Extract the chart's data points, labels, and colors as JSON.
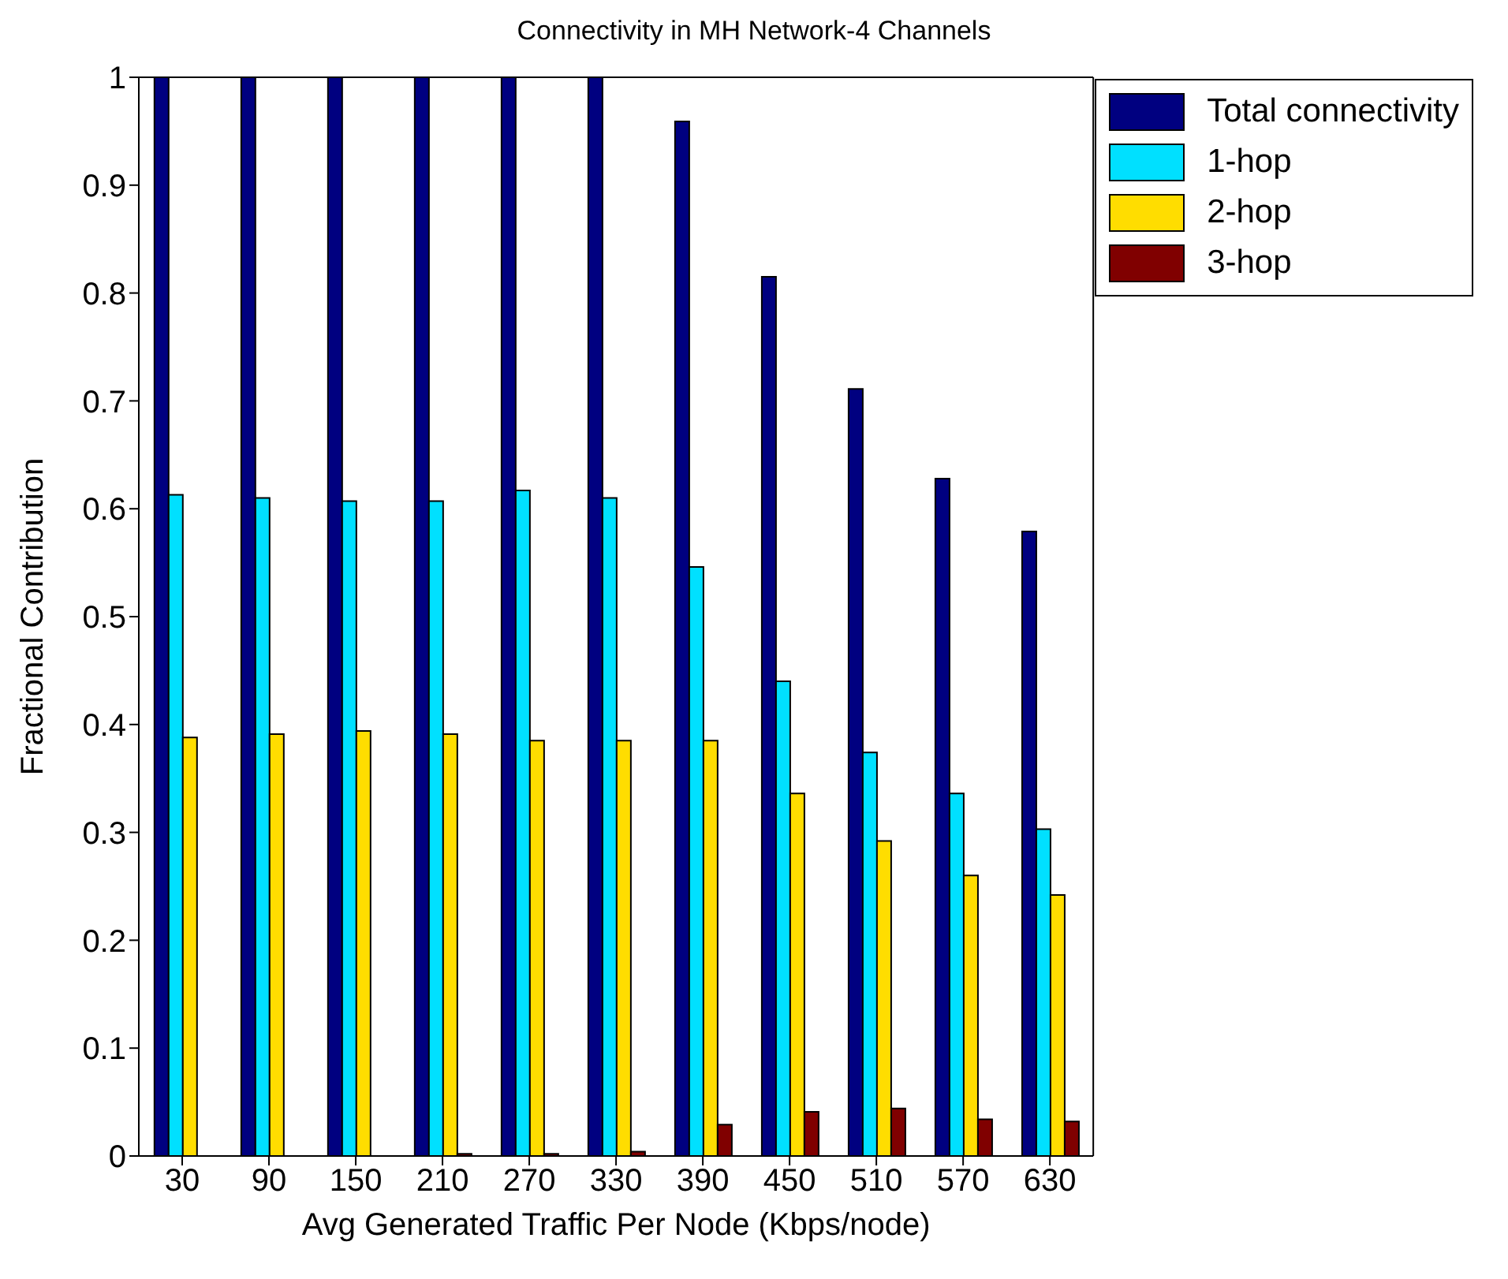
{
  "chart_data": {
    "type": "bar",
    "title": "Connectivity in MH Network-4 Channels",
    "xlabel": "Avg Generated Traffic Per Node (Kbps/node)",
    "ylabel": "Fractional Contribution",
    "categories": [
      "30",
      "90",
      "150",
      "210",
      "270",
      "330",
      "390",
      "450",
      "510",
      "570",
      "630"
    ],
    "series": [
      {
        "name": "Total connectivity",
        "color": "#000080",
        "values": [
          1,
          1,
          1,
          1,
          1,
          1,
          0.959,
          0.815,
          0.711,
          0.628,
          0.579
        ]
      },
      {
        "name": "1-hop",
        "color": "#00e0ff",
        "values": [
          0.613,
          0.61,
          0.607,
          0.607,
          0.617,
          0.61,
          0.546,
          0.44,
          0.374,
          0.336,
          0.303
        ]
      },
      {
        "name": "2-hop",
        "color": "#ffdd00",
        "values": [
          0.388,
          0.391,
          0.394,
          0.391,
          0.385,
          0.385,
          0.385,
          0.336,
          0.292,
          0.26,
          0.242
        ]
      },
      {
        "name": "3-hop",
        "color": "#800000",
        "values": [
          0,
          0,
          0,
          0.002,
          0.002,
          0.004,
          0.029,
          0.041,
          0.044,
          0.034,
          0.032
        ]
      }
    ],
    "ylim": [
      0,
      1
    ],
    "yticks": [
      0,
      0.1,
      0.2,
      0.3,
      0.4,
      0.5,
      0.6,
      0.7,
      0.8,
      0.9,
      1
    ],
    "grid": false,
    "legend": "top right"
  }
}
